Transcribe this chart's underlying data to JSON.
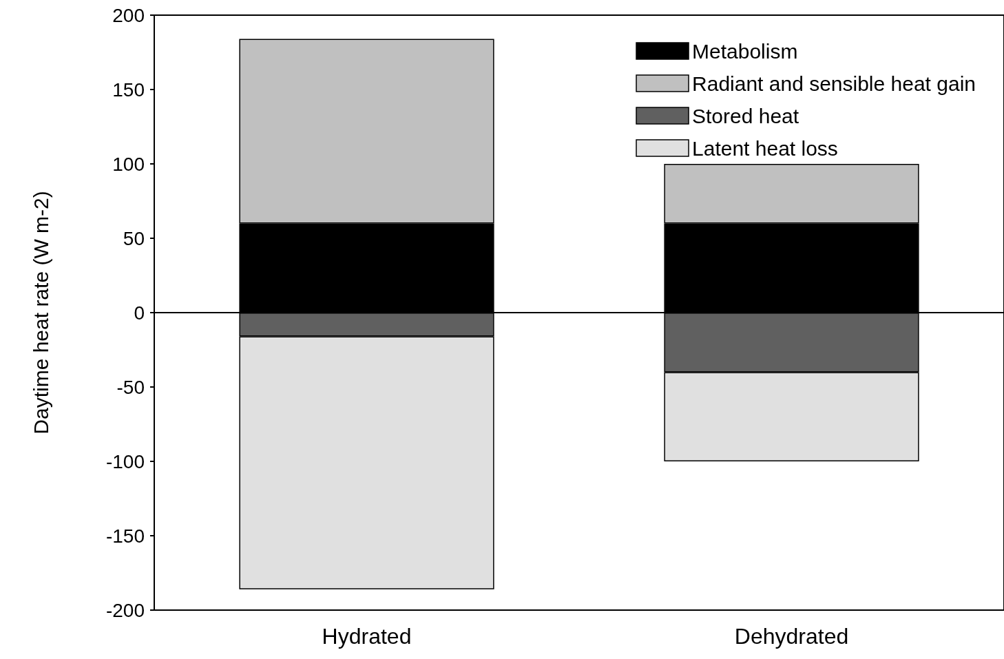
{
  "chart_data": {
    "type": "bar",
    "stacked": true,
    "ylabel": "Daytime heat rate (W m-2)",
    "categories": [
      "Hydrated",
      "Dehydrated"
    ],
    "series": [
      {
        "name": "Metabolism",
        "color": "#000000",
        "values": [
          60,
          60
        ]
      },
      {
        "name": "Radiant and sensible heat gain",
        "color": "#c0c0c0",
        "values": [
          124,
          40
        ]
      },
      {
        "name": "Stored heat",
        "color": "#606060",
        "values": [
          -16,
          -40
        ]
      },
      {
        "name": "Latent heat loss",
        "color": "#e0e0e0",
        "values": [
          -170,
          -60
        ]
      }
    ],
    "ylim": [
      -200,
      200
    ],
    "yticks": [
      -200,
      -150,
      -100,
      -50,
      0,
      50,
      100,
      150,
      200
    ],
    "ref_lines": [
      {
        "axis": "y",
        "value": 0
      }
    ],
    "grid": false,
    "legend": "top right"
  }
}
